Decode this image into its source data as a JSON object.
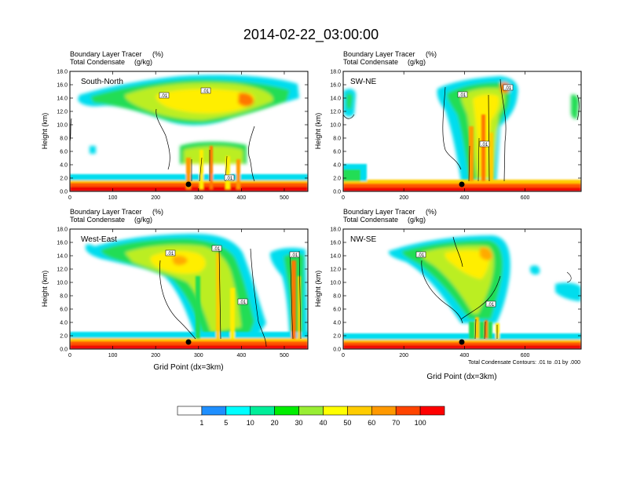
{
  "title": "2014-02-22_03:00:00",
  "chart_data": [
    {
      "type": "heatmap",
      "panel": "top-left",
      "variable_label": "Boundary Layer Tracer",
      "variable_units": "(%)",
      "contour_label": "Total Condensate",
      "contour_units": "(g/kg)",
      "section_label": "South-North",
      "ylabel": "Height (km)",
      "xlabel": "",
      "ylim": [
        0,
        18
      ],
      "xlim": [
        0,
        555
      ],
      "yticks": [
        "0.0",
        "2.0",
        "4.0",
        "6.0",
        "8.0",
        "10.0",
        "12.0",
        "14.0",
        "16.0",
        "18.0"
      ],
      "xticks": [
        {
          "v": 0,
          "label": "0"
        },
        {
          "v": 100,
          "label": "100"
        },
        {
          "v": 200,
          "label": "200"
        },
        {
          "v": 300,
          "label": "300"
        },
        {
          "v": 400,
          "label": "400"
        },
        {
          "v": 500,
          "label": "500"
        }
      ],
      "contour_labels": [
        ".01",
        ".01",
        ".01"
      ],
      "marker_x": 280
    },
    {
      "type": "heatmap",
      "panel": "top-right",
      "variable_label": "Boundary Layer Tracer",
      "variable_units": "(%)",
      "contour_label": "Total Condensate",
      "contour_units": "(g/kg)",
      "section_label": "SW-NE",
      "ylabel": "Height (km)",
      "xlabel": "",
      "ylim": [
        0,
        18
      ],
      "xlim": [
        0,
        785
      ],
      "yticks": [
        "0.0",
        "2.0",
        "4.0",
        "6.0",
        "8.0",
        "10.0",
        "12.0",
        "14.0",
        "16.0",
        "18.0"
      ],
      "xticks": [
        {
          "v": 0,
          "label": "0"
        },
        {
          "v": 200,
          "label": "200"
        },
        {
          "v": 400,
          "label": "400"
        },
        {
          "v": 600,
          "label": "600"
        }
      ],
      "contour_labels": [
        ".01",
        ".01",
        ".01"
      ],
      "marker_x": 400
    },
    {
      "type": "heatmap",
      "panel": "bottom-left",
      "variable_label": "Boundary Layer Tracer",
      "variable_units": "(%)",
      "contour_label": "Total Condensate",
      "contour_units": "(g/kg)",
      "section_label": "West-East",
      "ylabel": "Height (km)",
      "xlabel": "Grid Point (dx=3km)",
      "ylim": [
        0,
        18
      ],
      "xlim": [
        0,
        555
      ],
      "yticks": [
        "0.0",
        "2.0",
        "4.0",
        "6.0",
        "8.0",
        "10.0",
        "12.0",
        "14.0",
        "16.0",
        "18.0"
      ],
      "xticks": [
        {
          "v": 0,
          "label": "0"
        },
        {
          "v": 100,
          "label": "100"
        },
        {
          "v": 200,
          "label": "200"
        },
        {
          "v": 300,
          "label": "300"
        },
        {
          "v": 400,
          "label": "400"
        },
        {
          "v": 500,
          "label": "500"
        }
      ],
      "contour_labels": [
        ".01",
        ".01",
        ".01",
        ".01"
      ],
      "marker_x": 280
    },
    {
      "type": "heatmap",
      "panel": "bottom-right",
      "variable_label": "Boundary Layer Tracer",
      "variable_units": "(%)",
      "contour_label": "Total Condensate",
      "contour_units": "(g/kg)",
      "section_label": "NW-SE",
      "ylabel": "Height (km)",
      "xlabel": "Grid Point (dx=3km)",
      "ylim": [
        0,
        18
      ],
      "xlim": [
        0,
        785
      ],
      "yticks": [
        "0.0",
        "2.0",
        "4.0",
        "6.0",
        "8.0",
        "10.0",
        "12.0",
        "14.0",
        "16.0",
        "18.0"
      ],
      "xticks": [
        {
          "v": 0,
          "label": "0"
        },
        {
          "v": 200,
          "label": "200"
        },
        {
          "v": 400,
          "label": "400"
        },
        {
          "v": 600,
          "label": "600"
        }
      ],
      "contour_labels": [
        ".01",
        ".01"
      ],
      "marker_x": 400,
      "contour_info": "Total Condensate Contours: .01 to .01 by .000"
    }
  ],
  "colorbar": {
    "colors": [
      "#ffffff",
      "#1f8fff",
      "#00ffff",
      "#00ee99",
      "#00ee00",
      "#99ee33",
      "#ffff00",
      "#ffcc00",
      "#ff9900",
      "#ff4400",
      "#ff0000"
    ],
    "labels": [
      "1",
      "5",
      "10",
      "20",
      "30",
      "40",
      "50",
      "60",
      "70",
      "100"
    ]
  }
}
